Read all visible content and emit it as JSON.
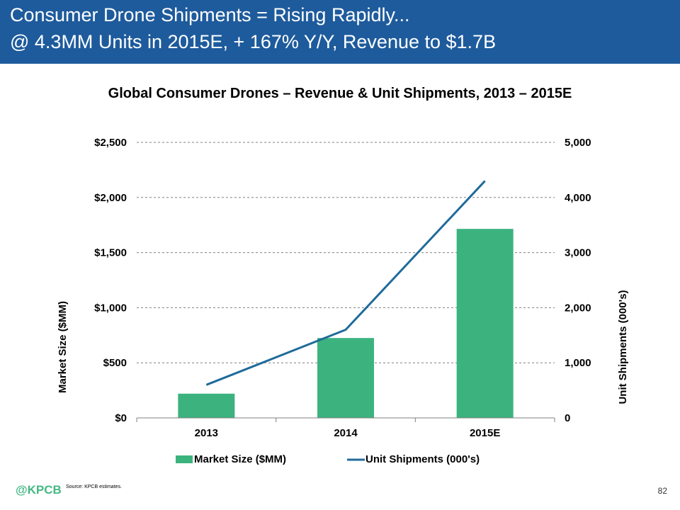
{
  "slide": {
    "title_line1": "Consumer Drone Shipments = Rising Rapidly...",
    "title_line2": "@ 4.3MM Units in 2015E, + 167% Y/Y, Revenue to $1.7B",
    "source": "Source: KPCB estimates.",
    "logo": "@KPCB",
    "page_number": "82"
  },
  "colors": {
    "header_bg": "#1e5b9c",
    "bar": "#3cb37e",
    "line": "#1f6b9a",
    "logo": "#44b884"
  },
  "chart_data": {
    "type": "bar",
    "title": "Global Consumer Drones – Revenue & Unit Shipments, 2013 – 2015E",
    "categories": [
      "2013",
      "2014",
      "2015E"
    ],
    "y_left": {
      "label": "Market Size ($MM)",
      "ylim": [
        0,
        2500
      ],
      "ticks": [
        0,
        500,
        1000,
        1500,
        2000,
        2500
      ],
      "tick_labels": [
        "$0",
        "$500",
        "$1,000",
        "$1,500",
        "$2,000",
        "$2,500"
      ]
    },
    "y_right": {
      "label": "Unit Shipments (000's)",
      "ylim": [
        0,
        5000
      ],
      "ticks": [
        0,
        1000,
        2000,
        3000,
        4000,
        5000
      ],
      "tick_labels": [
        "0",
        "1,000",
        "2,000",
        "3,000",
        "4,000",
        "5,000"
      ]
    },
    "grid": true,
    "legend_position": "bottom",
    "series": [
      {
        "name": "Market Size ($MM)",
        "type": "bar",
        "axis": "left",
        "values": [
          220,
          725,
          1715
        ]
      },
      {
        "name": "Unit Shipments (000's)",
        "type": "line",
        "axis": "right",
        "values": [
          600,
          1600,
          4300
        ]
      }
    ]
  }
}
